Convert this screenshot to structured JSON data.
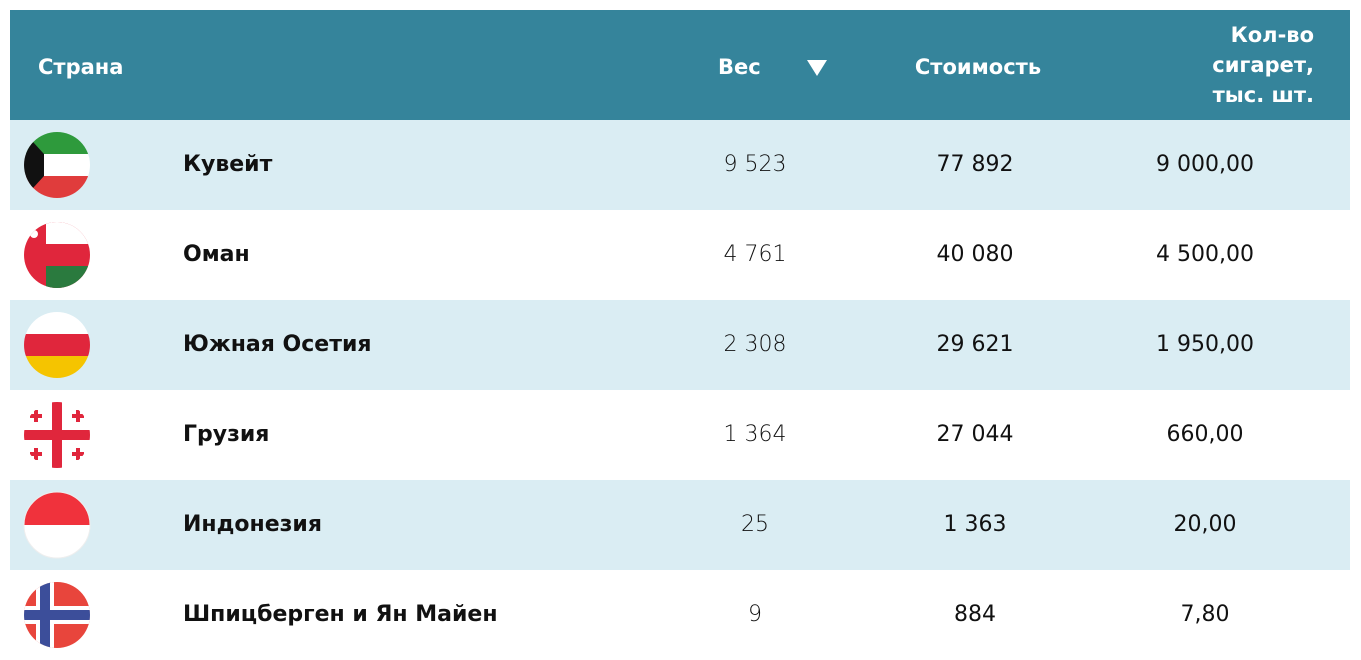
{
  "table": {
    "header": [
      "Страна",
      "Вес",
      "Стоимость",
      "Кол-во сигарет, тыс. шт."
    ],
    "rows": [
      [
        "Кувейт",
        "9 523",
        "77 892",
        "9 000,00"
      ],
      [
        "Оман",
        "4 761",
        "40 080",
        "4 500,00"
      ],
      [
        "Южная Осетия",
        "2 308",
        "29 621",
        "1 950,00"
      ],
      [
        "Грузия",
        "1 364",
        "27 044",
        "660,00"
      ],
      [
        "Индонезия",
        "25",
        "1 363",
        "20,00"
      ],
      [
        "Шпицберген и Ян Майен",
        "9",
        "884",
        "7,80"
      ]
    ]
  }
}
